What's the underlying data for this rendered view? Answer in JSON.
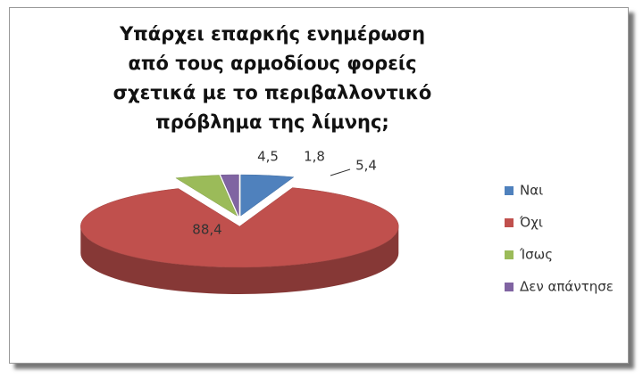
{
  "chart_data": {
    "type": "pie3d",
    "title": "Υπάρχει επαρκής ενημέρωση από τους αρμοδίους φορείς σχετικά με το περιβαλλοντικό πρόβλημα της λίμνης;",
    "categories": [
      "Ναι",
      "Όχι",
      "Ίσως",
      "Δεν απάντησε"
    ],
    "values": [
      5.4,
      88.4,
      4.5,
      1.8
    ],
    "value_labels": [
      "5,4",
      "88,4",
      "4,5",
      "1,8"
    ],
    "colors": [
      "#4f81bd",
      "#c0504d",
      "#9bbb59",
      "#8064a2"
    ],
    "legend": "right"
  }
}
